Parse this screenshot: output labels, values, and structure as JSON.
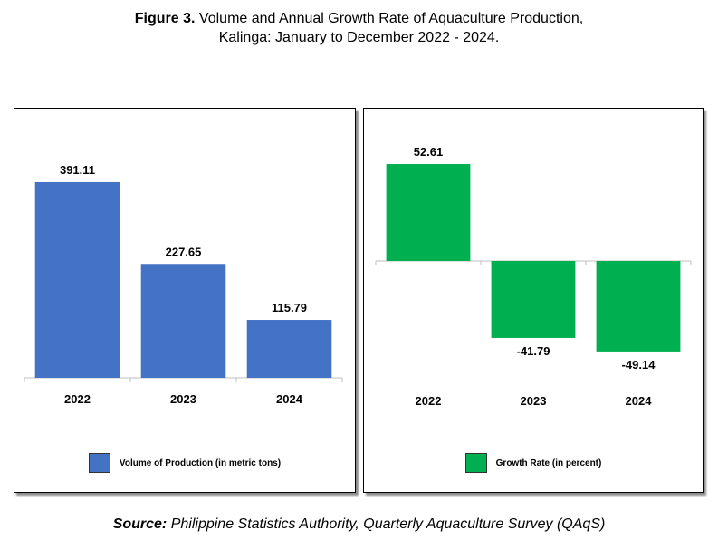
{
  "title": {
    "prefix": "Figure 3.",
    "line1": "Volume and Annual Growth Rate of Aquaculture Production,",
    "line2": "Kalinga: January to December 2022 - 2024."
  },
  "source": {
    "label": "Source:",
    "text": "Philippine Statistics Authority, Quarterly Aquaculture Survey (QAqS)"
  },
  "chart_data": [
    {
      "type": "bar",
      "categories": [
        "2022",
        "2023",
        "2024"
      ],
      "series": [
        {
          "name": "Volume of Production (in metric tons)",
          "values": [
            391.11,
            227.65,
            115.79
          ]
        }
      ],
      "ylim": [
        0,
        420
      ],
      "grid": false,
      "legend": "bottom",
      "color": "#4472C4"
    },
    {
      "type": "bar",
      "categories": [
        "2022",
        "2023",
        "2024"
      ],
      "series": [
        {
          "name": "Growth Rate (in percent)",
          "values": [
            52.61,
            -41.79,
            -49.14
          ]
        }
      ],
      "ylim": [
        -60,
        60
      ],
      "grid": false,
      "legend": "bottom",
      "color": "#00B050"
    }
  ]
}
